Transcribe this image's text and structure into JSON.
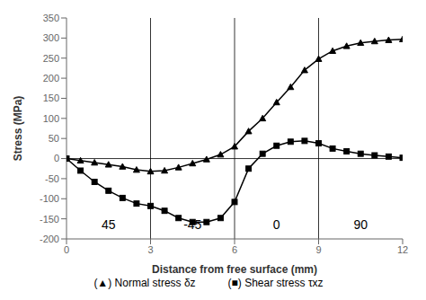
{
  "chart_data": {
    "type": "line",
    "x_label": "Distance from free surface (mm)",
    "y_label": "Stress (MPa)",
    "xlim": [
      0,
      12
    ],
    "ylim": [
      -200,
      350
    ],
    "xticks": [
      0,
      3,
      6,
      9,
      12
    ],
    "yticks": [
      -200,
      -150,
      -100,
      -50,
      0,
      50,
      100,
      150,
      200,
      250,
      300,
      350
    ],
    "x": [
      0,
      0.5,
      1.0,
      1.5,
      2.0,
      2.5,
      3.0,
      3.5,
      4.0,
      4.5,
      5.0,
      5.5,
      6.0,
      6.5,
      7.0,
      7.5,
      8.0,
      8.5,
      9.0,
      9.5,
      10.0,
      10.5,
      11.0,
      11.5,
      12.0
    ],
    "series": [
      {
        "name": "(▲) Normal stress δz",
        "color": "#000000",
        "marker": "triangle",
        "values": [
          0,
          -5,
          -10,
          -15,
          -20,
          -28,
          -32,
          -30,
          -22,
          -12,
          -2,
          10,
          30,
          68,
          100,
          140,
          178,
          220,
          248,
          268,
          280,
          288,
          292,
          295,
          297
        ]
      },
      {
        "name": "(■) Shear stress τxz",
        "color": "#000000",
        "marker": "square",
        "values": [
          0,
          -30,
          -58,
          -80,
          -98,
          -112,
          -118,
          -130,
          -148,
          -158,
          -158,
          -148,
          -108,
          -25,
          12,
          32,
          42,
          44,
          38,
          25,
          18,
          12,
          8,
          5,
          2
        ]
      }
    ],
    "vlines": [
      3,
      6,
      9
    ],
    "hlines": [
      0
    ],
    "annotations": [
      {
        "x": 1.5,
        "y": -165,
        "text": "45"
      },
      {
        "x": 4.5,
        "y": -165,
        "text": "-45"
      },
      {
        "x": 7.5,
        "y": -165,
        "text": "0"
      },
      {
        "x": 10.5,
        "y": -165,
        "text": "90"
      }
    ],
    "legend": "bottom"
  }
}
